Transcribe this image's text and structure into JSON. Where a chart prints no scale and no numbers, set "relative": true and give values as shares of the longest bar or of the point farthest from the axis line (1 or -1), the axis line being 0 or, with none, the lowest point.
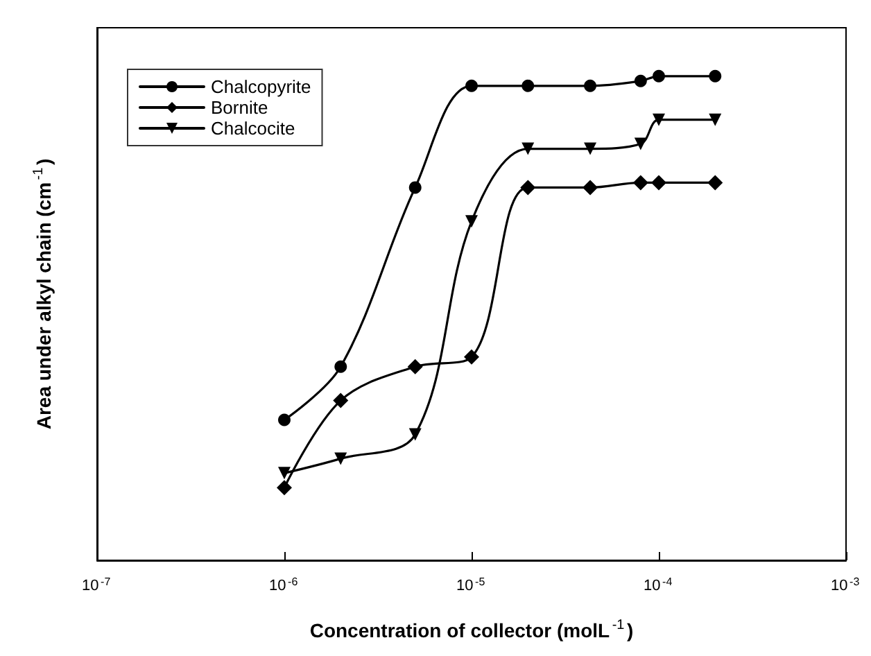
{
  "chart_data": {
    "type": "line",
    "relative": true,
    "xlabel": "Concentration of collector (molL$^{-1}$)",
    "ylabel": "Area under alkyl chain (cm$^{-1}$)",
    "log": "x",
    "xlim": [
      1e-07,
      0.001
    ],
    "xticks": [
      {
        "value": 1e-07,
        "label": "10$^{-7}$"
      },
      {
        "value": 1e-06,
        "label": "10$^{-6}$"
      },
      {
        "value": 1e-05,
        "label": "10$^{-5}$"
      },
      {
        "value": 0.0001,
        "label": "10$^{-4}$"
      },
      {
        "value": 0.001,
        "label": "10$^{-3}$"
      }
    ],
    "x": [
      1e-06,
      2e-06,
      5e-06,
      1e-05,
      2e-05,
      4.3e-05,
      8e-05,
      0.0001,
      0.0002
    ],
    "series": [
      {
        "name": "Chalcopyrite",
        "color": "#000000",
        "marker": "circle",
        "values": [
          0.29,
          0.4,
          0.77,
          0.98,
          0.98,
          0.98,
          0.99,
          1.0,
          1.0
        ]
      },
      {
        "name": "Bornite",
        "color": "#000000",
        "marker": "diamond",
        "values": [
          0.15,
          0.33,
          0.4,
          0.42,
          0.77,
          0.77,
          0.78,
          0.78,
          0.78
        ]
      },
      {
        "name": "Chalcocite",
        "color": "#000000",
        "marker": "triangle",
        "values": [
          0.18,
          0.21,
          0.26,
          0.7,
          0.85,
          0.85,
          0.86,
          0.91,
          0.91
        ]
      }
    ],
    "legend": "top left",
    "grid": false,
    "line_style": "solid"
  }
}
